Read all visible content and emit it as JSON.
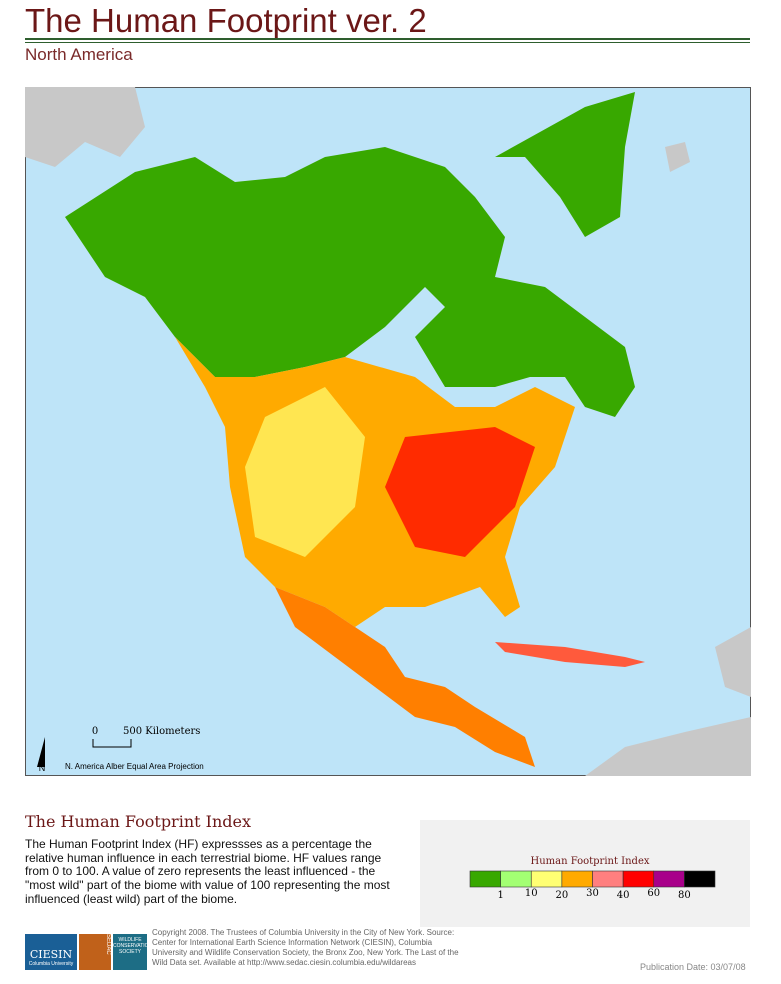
{
  "header": {
    "title": "The Human Footprint ver. 2",
    "subtitle": "North America"
  },
  "map": {
    "scale_zero": "0",
    "scale_label": "500 Kilometers",
    "north": "N",
    "projection": "N. America Alber Equal Area Projection"
  },
  "section": {
    "title": "The Human Footprint Index",
    "body": "The Human Footprint Index (HF) expressses as a percentage the relative human influence in each terrestrial biome. HF values range from 0 to 100. A value of zero represents the least influenced - the \"most wild\" part of the biome with value of 100 representing the most influenced (least wild) part of the biome."
  },
  "legend": {
    "title": "Human Footprint Index",
    "colors": [
      "#38a800",
      "#a3ff73",
      "#ffff73",
      "#ffaa00",
      "#ff7f7f",
      "#ff0000",
      "#a8008a",
      "#000000"
    ],
    "labels": [
      "1",
      "10",
      "20",
      "30",
      "40",
      "60",
      "80"
    ]
  },
  "footer": {
    "copyright": "Copyright 2008. The Trustees of Columbia University in the City of New York. Source: Center for International Earth Science Information Network (CIESIN), Columbia University and Wildlife Conservation Society, the Bronx Zoo, New York. The Last of the Wild Data set. Available at http://www.sedac.ciesin.columbia.edu/wildareas",
    "logo_ciesin": "CIESIN",
    "logo_columbia": "Columbia University",
    "logo_sedac": "SEDAC",
    "logo_wcs": "WILDLIFE CONSERVATION SOCIETY",
    "publication_date": "Publication Date: 03/07/08"
  }
}
